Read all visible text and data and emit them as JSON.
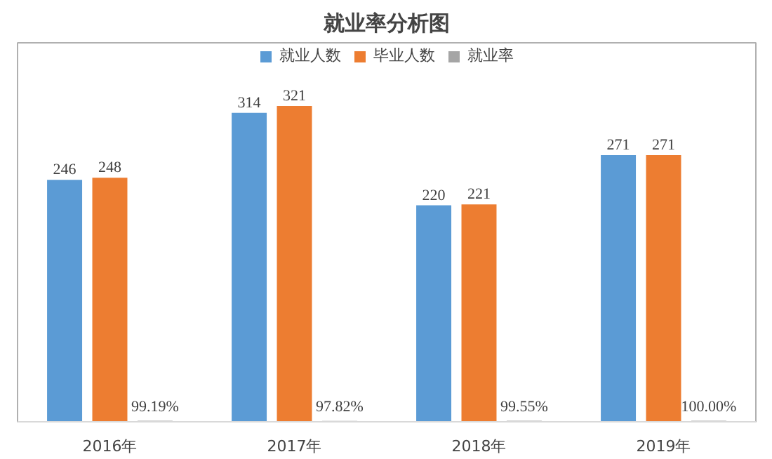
{
  "chart_data": {
    "type": "bar",
    "title": "就业率分析图",
    "categories": [
      "2016年",
      "2017年",
      "2018年",
      "2019年"
    ],
    "series": [
      {
        "name": "就业人数",
        "color": "#5b9bd5",
        "values": [
          246,
          314,
          220,
          271
        ]
      },
      {
        "name": "毕业人数",
        "color": "#ed7d31",
        "values": [
          248,
          321,
          221,
          271
        ]
      },
      {
        "name": "就业率",
        "color": "#a5a5a5",
        "values": [
          0.9919,
          0.9782,
          0.9955,
          1.0
        ],
        "value_labels": [
          "99.19%",
          "97.82%",
          "99.55%",
          "100.00%"
        ]
      }
    ],
    "data_labels": true,
    "legend": "top",
    "grid": false
  }
}
